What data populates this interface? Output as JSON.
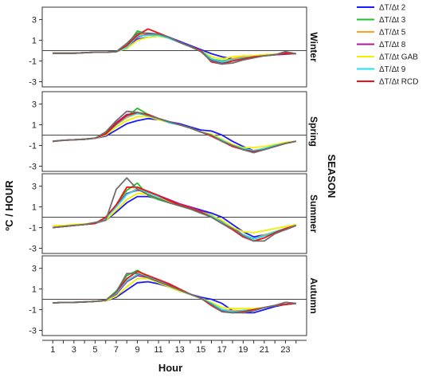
{
  "chart_data": {
    "type": "line",
    "xlabel": "Hour",
    "ylabel": "ºC / HOUR",
    "facet_title": "SEASON",
    "x": [
      1,
      2,
      3,
      4,
      5,
      6,
      7,
      8,
      9,
      10,
      11,
      12,
      13,
      14,
      15,
      16,
      17,
      18,
      19,
      20,
      21,
      22,
      23,
      24
    ],
    "x_ticks": [
      1,
      3,
      5,
      7,
      9,
      11,
      13,
      15,
      17,
      19,
      21,
      23
    ],
    "ylim": [
      -3.5,
      4.2
    ],
    "y_ticks": [
      -3,
      -1,
      1,
      3
    ],
    "reference_line_y": 0,
    "legend_position": "top-right",
    "series_legend": [
      {
        "name": "ΔT/Δt 2",
        "color": "#1a1aff"
      },
      {
        "name": "ΔT/Δt 3",
        "color": "#22c02a"
      },
      {
        "name": "ΔT/Δt 5",
        "color": "#ffa020"
      },
      {
        "name": "ΔT/Δt 8",
        "color": "#b01890"
      },
      {
        "name": "ΔT/Δt GAB",
        "color": "#f0f000"
      },
      {
        "name": "ΔT/Δt 9",
        "color": "#20e0f0"
      },
      {
        "name": "ΔT/Δt RCD",
        "color": "#f01010"
      }
    ],
    "extra_series_color": "#6e6e6e",
    "panels": [
      {
        "label": "Winter",
        "series": [
          {
            "name": "ΔT/Δt 2",
            "values": [
              -0.25,
              -0.25,
              -0.25,
              -0.2,
              -0.15,
              -0.15,
              -0.1,
              0.2,
              1.1,
              1.3,
              1.4,
              1.3,
              0.9,
              0.5,
              0.1,
              -0.3,
              -0.6,
              -0.8,
              -0.7,
              -0.6,
              -0.5,
              -0.4,
              -0.35,
              -0.3
            ]
          },
          {
            "name": "ΔT/Δt 3",
            "values": [
              -0.25,
              -0.25,
              -0.25,
              -0.2,
              -0.15,
              -0.15,
              -0.1,
              0.5,
              1.9,
              1.6,
              1.5,
              1.2,
              0.8,
              0.4,
              0.0,
              -0.8,
              -1.0,
              -0.8,
              -0.7,
              -0.6,
              -0.5,
              -0.4,
              -0.3,
              -0.3
            ]
          },
          {
            "name": "ΔT/Δt 5",
            "values": [
              -0.25,
              -0.25,
              -0.25,
              -0.2,
              -0.15,
              -0.15,
              -0.1,
              0.4,
              1.5,
              1.7,
              1.5,
              1.2,
              0.8,
              0.4,
              0.0,
              -0.8,
              -1.1,
              -0.8,
              -0.6,
              -0.5,
              -0.4,
              -0.35,
              -0.3,
              -0.3
            ]
          },
          {
            "name": "ΔT/Δt 8",
            "values": [
              -0.25,
              -0.25,
              -0.25,
              -0.2,
              -0.15,
              -0.15,
              -0.1,
              0.3,
              1.3,
              1.6,
              1.5,
              1.2,
              0.8,
              0.4,
              0.0,
              -0.9,
              -1.2,
              -0.9,
              -0.7,
              -0.6,
              -0.5,
              -0.4,
              -0.2,
              -0.3
            ]
          },
          {
            "name": "ΔT/Δt GAB",
            "values": [
              -0.25,
              -0.25,
              -0.25,
              -0.2,
              -0.15,
              -0.15,
              -0.1,
              0.2,
              1.0,
              1.3,
              1.4,
              1.2,
              0.8,
              0.4,
              0.0,
              -0.6,
              -0.8,
              -0.6,
              -0.5,
              -0.5,
              -0.4,
              -0.35,
              -0.3,
              -0.3
            ]
          },
          {
            "name": "ΔT/Δt 9",
            "values": [
              -0.25,
              -0.25,
              -0.25,
              -0.2,
              -0.15,
              -0.15,
              -0.1,
              0.3,
              1.4,
              1.5,
              1.5,
              1.2,
              0.8,
              0.4,
              0.0,
              -0.8,
              -1.1,
              -0.9,
              -0.7,
              -0.6,
              -0.5,
              -0.4,
              -0.3,
              -0.3
            ]
          },
          {
            "name": "ΔT/Δt RCD",
            "values": [
              -0.25,
              -0.25,
              -0.25,
              -0.2,
              -0.15,
              -0.15,
              -0.1,
              0.5,
              1.5,
              2.1,
              1.7,
              1.3,
              0.8,
              0.4,
              0.0,
              -1.1,
              -1.3,
              -1.0,
              -0.8,
              -0.6,
              -0.5,
              -0.4,
              -0.3,
              -0.3
            ]
          },
          {
            "name": "",
            "values": [
              -0.25,
              -0.25,
              -0.25,
              -0.2,
              -0.15,
              -0.15,
              -0.1,
              0.7,
              1.7,
              1.7,
              1.6,
              1.3,
              0.8,
              0.4,
              -0.1,
              -1.0,
              -1.3,
              -1.2,
              -0.9,
              -0.7,
              -0.5,
              -0.4,
              -0.1,
              -0.3
            ]
          }
        ]
      },
      {
        "label": "Spring",
        "series": [
          {
            "name": "ΔT/Δt 2",
            "values": [
              -0.6,
              -0.5,
              -0.45,
              -0.4,
              -0.3,
              -0.1,
              0.5,
              1.1,
              1.4,
              1.6,
              1.5,
              1.3,
              1.1,
              0.8,
              0.5,
              0.4,
              0.0,
              -0.6,
              -1.1,
              -1.5,
              -1.3,
              -1.1,
              -0.8,
              -0.6
            ]
          },
          {
            "name": "ΔT/Δt 3",
            "values": [
              -0.6,
              -0.5,
              -0.45,
              -0.4,
              -0.3,
              0.2,
              1.2,
              1.8,
              2.6,
              2.0,
              1.6,
              1.2,
              1.0,
              0.7,
              0.3,
              0.0,
              -0.6,
              -1.0,
              -1.4,
              -1.6,
              -1.3,
              -1.1,
              -0.8,
              -0.6
            ]
          },
          {
            "name": "ΔT/Δt 5",
            "values": [
              -0.6,
              -0.5,
              -0.45,
              -0.4,
              -0.3,
              0.1,
              1.0,
              1.7,
              2.1,
              2.0,
              1.6,
              1.2,
              1.0,
              0.7,
              0.3,
              0.0,
              -0.5,
              -1.0,
              -1.3,
              -1.5,
              -1.3,
              -1.0,
              -0.8,
              -0.6
            ]
          },
          {
            "name": "ΔT/Δt 8",
            "values": [
              -0.6,
              -0.5,
              -0.45,
              -0.4,
              -0.3,
              0.1,
              1.2,
              2.0,
              2.1,
              2.0,
              1.6,
              1.3,
              1.0,
              0.7,
              0.3,
              0.0,
              -0.6,
              -1.0,
              -1.4,
              -1.6,
              -1.3,
              -1.1,
              -0.8,
              -0.6
            ]
          },
          {
            "name": "ΔT/Δt GAB",
            "values": [
              -0.6,
              -0.5,
              -0.45,
              -0.4,
              -0.3,
              0.0,
              0.8,
              1.4,
              1.8,
              1.8,
              1.5,
              1.2,
              1.0,
              0.7,
              0.3,
              0.1,
              -0.4,
              -0.9,
              -1.2,
              -1.2,
              -1.1,
              -0.9,
              -0.7,
              -0.6
            ]
          },
          {
            "name": "ΔT/Δt 9",
            "values": [
              -0.6,
              -0.5,
              -0.45,
              -0.4,
              -0.3,
              0.1,
              1.0,
              1.8,
              2.1,
              1.9,
              1.6,
              1.2,
              1.0,
              0.7,
              0.3,
              0.0,
              -0.5,
              -1.0,
              -1.3,
              -1.5,
              -1.3,
              -1.0,
              -0.8,
              -0.6
            ]
          },
          {
            "name": "ΔT/Δt RCD",
            "values": [
              -0.6,
              -0.5,
              -0.45,
              -0.4,
              -0.3,
              0.1,
              1.1,
              1.9,
              2.2,
              2.0,
              1.6,
              1.3,
              1.0,
              0.7,
              0.3,
              -0.1,
              -0.6,
              -1.1,
              -1.4,
              -1.6,
              -1.4,
              -1.1,
              -0.8,
              -0.6
            ]
          },
          {
            "name": "",
            "values": [
              -0.6,
              -0.5,
              -0.45,
              -0.4,
              -0.3,
              0.3,
              1.4,
              2.3,
              2.2,
              1.9,
              1.6,
              1.3,
              1.0,
              0.7,
              0.3,
              0.0,
              -0.6,
              -1.0,
              -1.4,
              -1.7,
              -1.4,
              -1.1,
              -0.8,
              -0.6
            ]
          }
        ]
      },
      {
        "label": "Summer",
        "series": [
          {
            "name": "ΔT/Δt 2",
            "values": [
              -1.0,
              -0.9,
              -0.8,
              -0.7,
              -0.6,
              -0.3,
              0.5,
              1.4,
              2.0,
              2.0,
              1.8,
              1.5,
              1.2,
              1.0,
              0.7,
              0.4,
              0.0,
              -0.7,
              -1.4,
              -1.9,
              -1.7,
              -1.5,
              -1.2,
              -0.8
            ]
          },
          {
            "name": "ΔT/Δt 3",
            "values": [
              -1.0,
              -0.9,
              -0.8,
              -0.7,
              -0.6,
              -0.1,
              1.2,
              2.6,
              3.3,
              2.1,
              1.7,
              1.4,
              1.1,
              0.8,
              0.4,
              0.1,
              -0.6,
              -1.1,
              -1.7,
              -2.1,
              -1.8,
              -1.4,
              -1.1,
              -0.8
            ]
          },
          {
            "name": "ΔT/Δt 5",
            "values": [
              -1.0,
              -0.9,
              -0.8,
              -0.7,
              -0.6,
              -0.1,
              1.0,
              2.2,
              2.8,
              2.4,
              2.0,
              1.5,
              1.2,
              0.9,
              0.5,
              0.1,
              -0.5,
              -1.1,
              -1.7,
              -2.1,
              -1.7,
              -1.4,
              -1.1,
              -0.8
            ]
          },
          {
            "name": "ΔT/Δt 8",
            "values": [
              -1.0,
              -0.9,
              -0.8,
              -0.7,
              -0.6,
              -0.1,
              1.1,
              2.3,
              2.6,
              2.5,
              2.1,
              1.7,
              1.3,
              1.0,
              0.6,
              0.2,
              -0.4,
              -1.0,
              -1.7,
              -2.1,
              -1.8,
              -1.5,
              -1.2,
              -0.8
            ]
          },
          {
            "name": "ΔT/Δt GAB",
            "values": [
              -0.8,
              -0.8,
              -0.7,
              -0.65,
              -0.55,
              -0.3,
              0.7,
              1.7,
              2.3,
              2.2,
              1.8,
              1.5,
              1.2,
              0.9,
              0.5,
              0.2,
              -0.3,
              -1.0,
              -1.4,
              -1.5,
              -1.3,
              -1.1,
              -0.9,
              -0.7
            ]
          },
          {
            "name": "ΔT/Δt 9",
            "values": [
              -1.0,
              -0.9,
              -0.8,
              -0.7,
              -0.6,
              -0.1,
              1.0,
              2.2,
              2.7,
              2.4,
              2.0,
              1.6,
              1.2,
              0.9,
              0.5,
              0.1,
              -0.5,
              -1.1,
              -1.7,
              -2.1,
              -1.8,
              -1.4,
              -1.1,
              -0.8
            ]
          },
          {
            "name": "ΔT/Δt RCD",
            "values": [
              -1.0,
              -0.9,
              -0.8,
              -0.7,
              -0.6,
              0.0,
              1.2,
              2.9,
              2.9,
              2.5,
              2.1,
              1.6,
              1.2,
              0.9,
              0.5,
              0.0,
              -0.6,
              -1.2,
              -1.9,
              -2.3,
              -2.0,
              -1.5,
              -1.1,
              -0.8
            ]
          },
          {
            "name": "",
            "values": [
              -1.0,
              -0.9,
              -0.8,
              -0.7,
              -0.5,
              -0.3,
              2.7,
              3.8,
              2.7,
              2.2,
              1.8,
              1.4,
              1.1,
              0.8,
              0.4,
              0.0,
              -0.6,
              -1.1,
              -1.8,
              -2.3,
              -2.3,
              -1.6,
              -1.2,
              -0.8
            ]
          }
        ]
      },
      {
        "label": "Autumn",
        "series": [
          {
            "name": "ΔT/Δt 2",
            "values": [
              -0.35,
              -0.3,
              -0.3,
              -0.25,
              -0.2,
              -0.15,
              0.2,
              0.9,
              1.6,
              1.7,
              1.5,
              1.2,
              0.8,
              0.5,
              0.2,
              0.0,
              -0.4,
              -1.1,
              -1.3,
              -1.3,
              -1.0,
              -0.7,
              -0.5,
              -0.4
            ]
          },
          {
            "name": "ΔT/Δt 3",
            "values": [
              -0.35,
              -0.3,
              -0.3,
              -0.25,
              -0.2,
              -0.1,
              0.8,
              2.3,
              2.8,
              2.2,
              1.7,
              1.2,
              0.8,
              0.5,
              0.1,
              -0.4,
              -1.1,
              -1.2,
              -1.1,
              -1.0,
              -0.8,
              -0.6,
              -0.5,
              -0.4
            ]
          },
          {
            "name": "ΔT/Δt 5",
            "values": [
              -0.35,
              -0.3,
              -0.3,
              -0.25,
              -0.2,
              -0.1,
              0.6,
              1.8,
              2.4,
              2.2,
              1.8,
              1.3,
              0.9,
              0.5,
              0.1,
              -0.4,
              -1.0,
              -1.1,
              -1.1,
              -1.0,
              -0.8,
              -0.6,
              -0.5,
              -0.4
            ]
          },
          {
            "name": "ΔT/Δt 8",
            "values": [
              -0.35,
              -0.3,
              -0.3,
              -0.25,
              -0.2,
              -0.1,
              0.5,
              1.7,
              2.3,
              2.1,
              1.8,
              1.4,
              0.9,
              0.5,
              0.1,
              -0.5,
              -1.1,
              -1.2,
              -1.1,
              -1.0,
              -0.8,
              -0.6,
              -0.3,
              -0.4
            ]
          },
          {
            "name": "ΔT/Δt GAB",
            "values": [
              -0.35,
              -0.3,
              -0.3,
              -0.25,
              -0.2,
              -0.15,
              0.3,
              1.2,
              2.0,
              2.0,
              1.6,
              1.2,
              0.8,
              0.5,
              0.1,
              -0.3,
              -0.8,
              -0.9,
              -0.9,
              -0.9,
              -0.8,
              -0.6,
              -0.5,
              -0.4
            ]
          },
          {
            "name": "ΔT/Δt 9",
            "values": [
              -0.35,
              -0.3,
              -0.3,
              -0.25,
              -0.2,
              -0.1,
              0.6,
              1.8,
              2.4,
              2.2,
              1.8,
              1.3,
              0.9,
              0.5,
              0.1,
              -0.4,
              -1.0,
              -1.2,
              -1.1,
              -1.0,
              -0.8,
              -0.6,
              -0.5,
              -0.4
            ]
          },
          {
            "name": "ΔT/Δt RCD",
            "values": [
              -0.35,
              -0.3,
              -0.3,
              -0.25,
              -0.2,
              -0.1,
              0.7,
              2.0,
              2.7,
              2.3,
              1.9,
              1.5,
              1.0,
              0.5,
              0.1,
              -0.6,
              -1.2,
              -1.3,
              -1.2,
              -1.0,
              -0.8,
              -0.6,
              -0.5,
              -0.4
            ]
          },
          {
            "name": "",
            "values": [
              -0.35,
              -0.3,
              -0.3,
              -0.25,
              -0.2,
              -0.1,
              0.7,
              2.5,
              2.5,
              2.1,
              1.7,
              1.3,
              0.9,
              0.5,
              0.1,
              -0.5,
              -1.2,
              -1.3,
              -1.3,
              -1.1,
              -0.8,
              -0.6,
              -0.3,
              -0.4
            ]
          }
        ]
      }
    ]
  }
}
